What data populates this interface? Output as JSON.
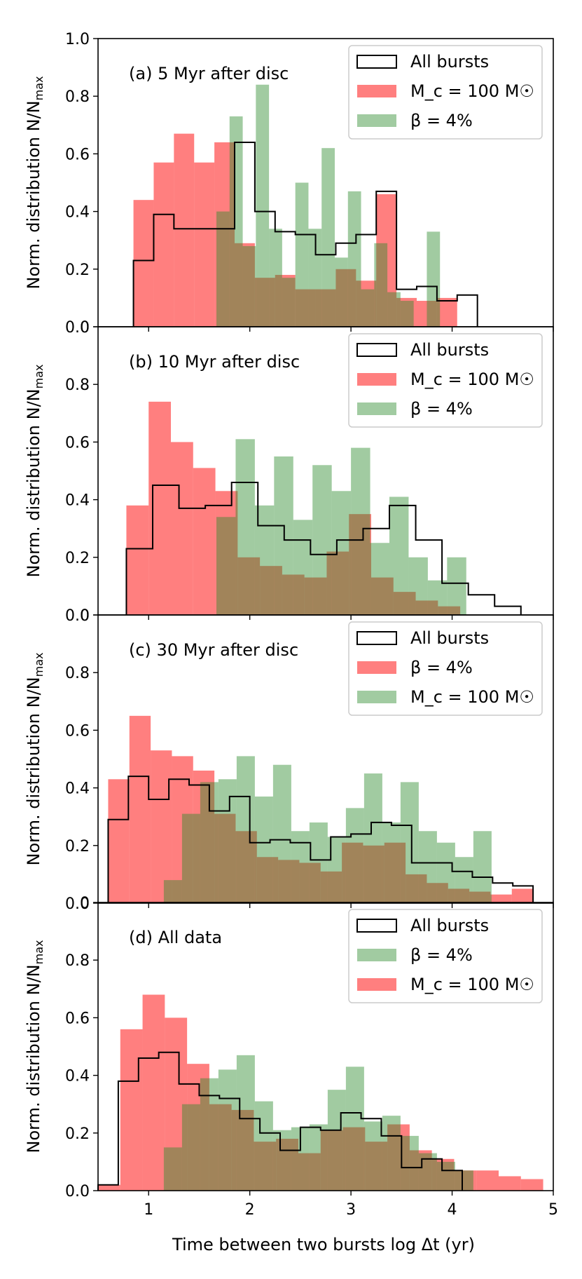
{
  "chart_data": {
    "type": "bar",
    "xlabel": "Time between two bursts log Δt (yr)",
    "ylabel": "Norm. distribution N/N",
    "ylabel_sub": "max",
    "xlim": [
      0.5,
      5.0
    ],
    "ylim": [
      0.0,
      1.0
    ],
    "xticks": [
      "1",
      "2",
      "3",
      "4",
      "5"
    ],
    "yticks": [
      "0.0",
      "0.2",
      "0.4",
      "0.6",
      "0.8",
      "1.0"
    ],
    "colors": {
      "red": "#ff0000",
      "green": "#2e8b2e",
      "black": "#000000"
    },
    "panels": [
      {
        "title": "(a)  5 Myr after disc",
        "legend": [
          {
            "label": "All bursts",
            "style": "step",
            "color": "#000000"
          },
          {
            "label": "M_c = 100 M☉",
            "style": "fill",
            "color": "#ff0000"
          },
          {
            "label": "β = 4%",
            "style": "fill",
            "color": "#2e8b2e"
          }
        ],
        "series": [
          {
            "style": "fill",
            "color": "#ff0000",
            "start": 0.85,
            "width": 0.2,
            "values": [
              0.44,
              0.57,
              0.67,
              0.57,
              0.64,
              0.29,
              0.17,
              0.18,
              0.13,
              0.13,
              0.2,
              0.16,
              0.46,
              0.1,
              0.09,
              0.1,
              0.0
            ]
          },
          {
            "style": "fill",
            "color": "#2e8b2e",
            "start": 1.67,
            "width": 0.13,
            "values": [
              0.4,
              0.73,
              0.28,
              0.84,
              0.34,
              0.17,
              0.5,
              0.34,
              0.62,
              0.24,
              0.47,
              0.13,
              0.29,
              0.12,
              0.09,
              0.0,
              0.33
            ]
          },
          {
            "style": "step",
            "color": "#000000",
            "start": 0.85,
            "width": 0.2,
            "values": [
              0.23,
              0.39,
              0.34,
              0.34,
              0.34,
              0.64,
              0.4,
              0.33,
              0.32,
              0.25,
              0.29,
              0.32,
              0.47,
              0.13,
              0.14,
              0.09,
              0.11
            ]
          }
        ]
      },
      {
        "title": "(b) 10 Myr after disc",
        "legend": [
          {
            "label": "All bursts",
            "style": "step",
            "color": "#000000"
          },
          {
            "label": "M_c = 100 M☉",
            "style": "fill",
            "color": "#ff0000"
          },
          {
            "label": "β = 4%",
            "style": "fill",
            "color": "#2e8b2e"
          }
        ],
        "series": [
          {
            "style": "fill",
            "color": "#ff0000",
            "start": 0.78,
            "width": 0.22,
            "values": [
              0.38,
              0.74,
              0.6,
              0.51,
              0.43,
              0.2,
              0.17,
              0.14,
              0.13,
              0.22,
              0.35,
              0.13,
              0.08,
              0.05,
              0.03,
              0.0
            ]
          },
          {
            "style": "fill",
            "color": "#2e8b2e",
            "start": 1.67,
            "width": 0.19,
            "values": [
              0.34,
              0.61,
              0.38,
              0.55,
              0.33,
              0.52,
              0.43,
              0.58,
              0.25,
              0.41,
              0.2,
              0.12,
              0.2,
              0.0
            ]
          },
          {
            "style": "step",
            "color": "#000000",
            "start": 0.78,
            "width": 0.26,
            "values": [
              0.23,
              0.45,
              0.37,
              0.38,
              0.46,
              0.31,
              0.26,
              0.21,
              0.26,
              0.3,
              0.38,
              0.26,
              0.11,
              0.07,
              0.03
            ]
          }
        ]
      },
      {
        "title": "(c) 30 Myr after disc",
        "legend": [
          {
            "label": "All bursts",
            "style": "step",
            "color": "#000000"
          },
          {
            "label": "β = 4%",
            "style": "fill",
            "color": "#ff0000"
          },
          {
            "label": "M_c = 100 M☉",
            "style": "fill",
            "color": "#2e8b2e"
          }
        ],
        "series": [
          {
            "style": "fill",
            "color": "#ff0000",
            "start": 0.6,
            "width": 0.21,
            "values": [
              0.43,
              0.65,
              0.53,
              0.51,
              0.46,
              0.31,
              0.25,
              0.16,
              0.15,
              0.14,
              0.11,
              0.21,
              0.2,
              0.21,
              0.1,
              0.07,
              0.05,
              0.04,
              0.03,
              0.05
            ]
          },
          {
            "style": "fill",
            "color": "#2e8b2e",
            "start": 1.15,
            "width": 0.18,
            "values": [
              0.08,
              0.31,
              0.42,
              0.43,
              0.51,
              0.37,
              0.48,
              0.25,
              0.28,
              0.23,
              0.33,
              0.45,
              0.28,
              0.42,
              0.25,
              0.21,
              0.16,
              0.25,
              0.0
            ]
          },
          {
            "style": "step",
            "color": "#000000",
            "start": 0.6,
            "width": 0.2,
            "values": [
              0.29,
              0.44,
              0.36,
              0.43,
              0.41,
              0.32,
              0.37,
              0.21,
              0.22,
              0.21,
              0.15,
              0.23,
              0.24,
              0.28,
              0.27,
              0.14,
              0.14,
              0.11,
              0.09,
              0.07,
              0.06
            ]
          }
        ]
      },
      {
        "title": "(d) All data",
        "legend": [
          {
            "label": "All bursts",
            "style": "step",
            "color": "#000000"
          },
          {
            "label": "β = 4%",
            "style": "fill",
            "color": "#2e8b2e"
          },
          {
            "label": "M_c = 100 M☉",
            "style": "fill",
            "color": "#ff0000"
          }
        ],
        "series": [
          {
            "style": "fill",
            "color": "#ff0000",
            "start": 0.5,
            "width": 0.22,
            "values": [
              0.02,
              0.56,
              0.68,
              0.6,
              0.44,
              0.3,
              0.28,
              0.17,
              0.18,
              0.13,
              0.21,
              0.22,
              0.17,
              0.23,
              0.14,
              0.11,
              0.07,
              0.07,
              0.05,
              0.04
            ]
          },
          {
            "style": "fill",
            "color": "#2e8b2e",
            "start": 1.15,
            "width": 0.18,
            "values": [
              0.15,
              0.3,
              0.39,
              0.42,
              0.47,
              0.31,
              0.21,
              0.22,
              0.23,
              0.35,
              0.43,
              0.24,
              0.26,
              0.19,
              0.13,
              0.1,
              0.07,
              0.0
            ]
          },
          {
            "style": "step",
            "color": "#000000",
            "start": 0.5,
            "width": 0.2,
            "values": [
              0.02,
              0.38,
              0.46,
              0.48,
              0.37,
              0.33,
              0.32,
              0.25,
              0.2,
              0.14,
              0.22,
              0.21,
              0.27,
              0.25,
              0.19,
              0.08,
              0.11,
              0.07
            ]
          }
        ]
      }
    ]
  }
}
